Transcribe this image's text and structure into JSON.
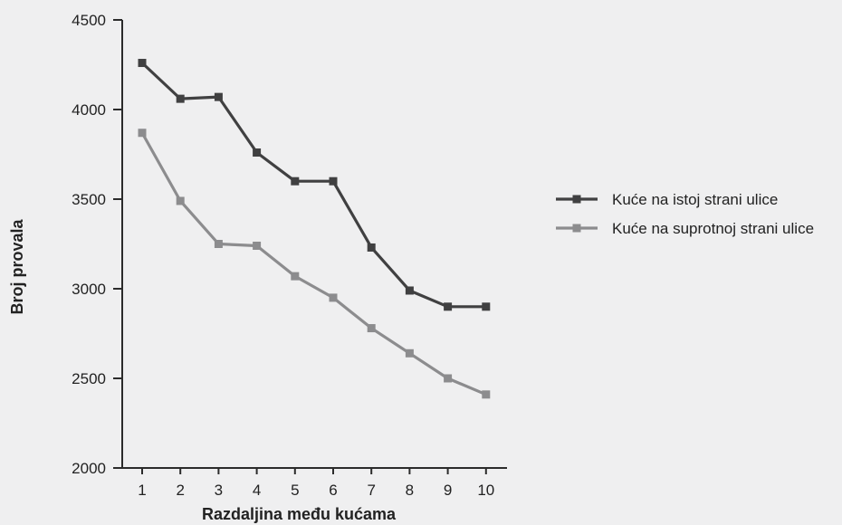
{
  "chart_data": {
    "type": "line",
    "xlabel": "Razdaljina među kućama",
    "ylabel": "Broj provala",
    "ylim": [
      2000,
      4500
    ],
    "yticks": [
      2000,
      2500,
      3000,
      3500,
      4000,
      4500
    ],
    "xticks": [
      1,
      2,
      3,
      4,
      5,
      6,
      7,
      8,
      9,
      10
    ],
    "grid": false,
    "legend_position": "right",
    "series": [
      {
        "name": "Kuće na istoj strani ulice",
        "color": "#404041",
        "marker": "square",
        "x": [
          1,
          2,
          3,
          4,
          5,
          6,
          7,
          8,
          9,
          10
        ],
        "y": [
          4260,
          4060,
          4070,
          3760,
          3600,
          3600,
          3230,
          2990,
          2900,
          2900
        ]
      },
      {
        "name": "Kuće na suprotnoj strani ulice",
        "color": "#8c8c8e",
        "marker": "square",
        "x": [
          1,
          2,
          3,
          4,
          5,
          6,
          7,
          8,
          9,
          10
        ],
        "y": [
          3870,
          3490,
          3250,
          3240,
          3070,
          2950,
          2780,
          2640,
          2500,
          2410
        ]
      }
    ]
  }
}
